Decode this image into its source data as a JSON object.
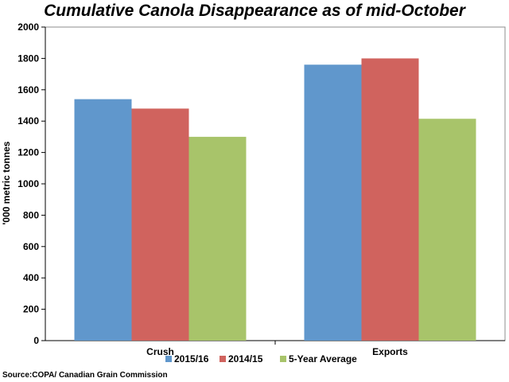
{
  "chart_data": {
    "type": "bar",
    "title": "Cumulative Canola Disappearance as of mid-October",
    "ylabel": "'000 metric tonnes",
    "xlabel": "",
    "categories": [
      "Crush",
      "Exports"
    ],
    "series": [
      {
        "name": "2015/16",
        "color": "#6097cc",
        "values": [
          1540,
          1760
        ]
      },
      {
        "name": "2014/15",
        "color": "#d0635e",
        "values": [
          1480,
          1800
        ]
      },
      {
        "name": "5-Year Average",
        "color": "#a8c46a",
        "values": [
          1300,
          1415
        ]
      }
    ],
    "ylim": [
      0,
      2000
    ],
    "yticks": [
      0,
      200,
      400,
      600,
      800,
      1000,
      1200,
      1400,
      1600,
      1800,
      2000
    ],
    "grid": false,
    "legend": "bottom",
    "source": "Source:COPA/ Canadian Grain Commission"
  }
}
